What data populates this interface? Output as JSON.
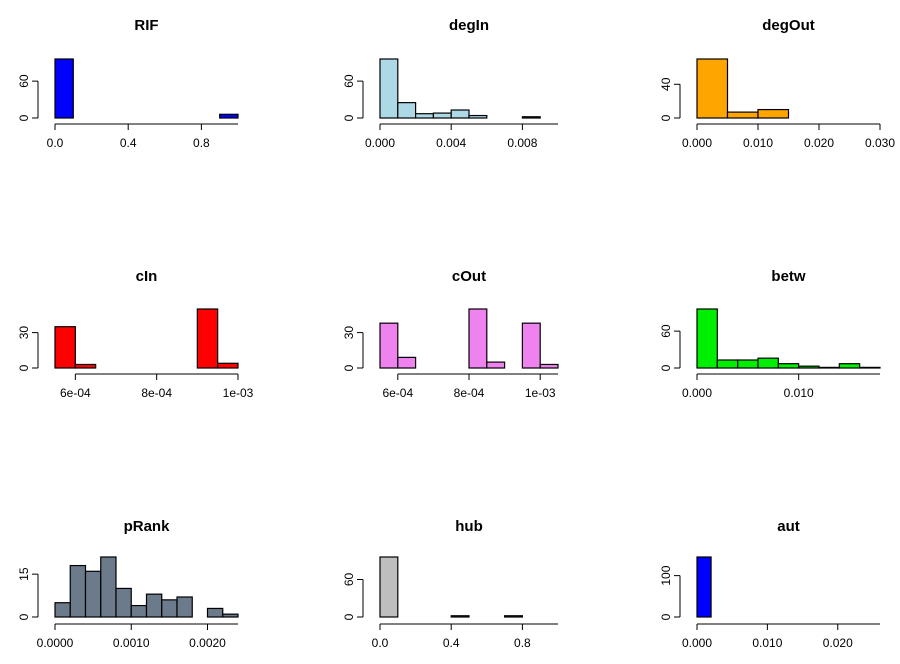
{
  "chart_data": [
    {
      "type": "bar",
      "title": "RIF",
      "color": "#0000ff",
      "bins": [
        {
          "start": 0.0,
          "end": 0.1,
          "count": 96
        },
        {
          "start": 0.1,
          "end": 0.2,
          "count": 0
        },
        {
          "start": 0.2,
          "end": 0.3,
          "count": 0
        },
        {
          "start": 0.3,
          "end": 0.4,
          "count": 0
        },
        {
          "start": 0.4,
          "end": 0.5,
          "count": 0
        },
        {
          "start": 0.5,
          "end": 0.6,
          "count": 0
        },
        {
          "start": 0.6,
          "end": 0.7,
          "count": 0
        },
        {
          "start": 0.7,
          "end": 0.8,
          "count": 0
        },
        {
          "start": 0.8,
          "end": 0.9,
          "count": 0
        },
        {
          "start": 0.9,
          "end": 1.0,
          "count": 6
        }
      ],
      "xlim": [
        0,
        1.0
      ],
      "ylim": [
        0,
        96
      ],
      "xticks": [
        0.0,
        0.4,
        0.8
      ],
      "xtick_labels": [
        "0.0",
        "0.4",
        "0.8"
      ],
      "yticks": [
        0,
        60
      ],
      "ytick_labels": [
        "0",
        "60"
      ]
    },
    {
      "type": "bar",
      "title": "degIn",
      "color": "#add8e6",
      "bins": [
        {
          "start": 0.0,
          "end": 0.001,
          "count": 96
        },
        {
          "start": 0.001,
          "end": 0.002,
          "count": 25
        },
        {
          "start": 0.002,
          "end": 0.003,
          "count": 7
        },
        {
          "start": 0.003,
          "end": 0.004,
          "count": 8
        },
        {
          "start": 0.004,
          "end": 0.005,
          "count": 13
        },
        {
          "start": 0.005,
          "end": 0.006,
          "count": 4
        },
        {
          "start": 0.006,
          "end": 0.007,
          "count": 0
        },
        {
          "start": 0.007,
          "end": 0.008,
          "count": 0
        },
        {
          "start": 0.008,
          "end": 0.009,
          "count": 2
        },
        {
          "start": 0.009,
          "end": 0.01,
          "count": 0
        }
      ],
      "xlim": [
        0,
        0.01
      ],
      "ylim": [
        0,
        96
      ],
      "xticks": [
        0.0,
        0.004,
        0.008
      ],
      "xtick_labels": [
        "0.000",
        "0.004",
        "0.008"
      ],
      "yticks": [
        0,
        60
      ],
      "ytick_labels": [
        "0",
        "60"
      ]
    },
    {
      "type": "bar",
      "title": "degOut",
      "color": "#ffa500",
      "bins": [
        {
          "start": 0.0,
          "end": 0.005,
          "count": 70
        },
        {
          "start": 0.005,
          "end": 0.01,
          "count": 7
        },
        {
          "start": 0.01,
          "end": 0.015,
          "count": 10
        },
        {
          "start": 0.015,
          "end": 0.02,
          "count": 0
        },
        {
          "start": 0.02,
          "end": 0.025,
          "count": 0
        },
        {
          "start": 0.025,
          "end": 0.03,
          "count": 0
        }
      ],
      "xlim": [
        0,
        0.03
      ],
      "ylim": [
        0,
        70
      ],
      "xticks": [
        0.0,
        0.01,
        0.02,
        0.03
      ],
      "xtick_labels": [
        "0.000",
        "0.010",
        "0.020",
        "0.030"
      ],
      "yticks": [
        0,
        40
      ],
      "ytick_labels": [
        "0",
        "40"
      ]
    },
    {
      "type": "bar",
      "title": "cIn",
      "color": "#ff0000",
      "bins": [
        {
          "start": 0.00055,
          "end": 0.0006,
          "count": 35
        },
        {
          "start": 0.0006,
          "end": 0.00065,
          "count": 3
        },
        {
          "start": 0.00065,
          "end": 0.0007,
          "count": 0
        },
        {
          "start": 0.0007,
          "end": 0.00075,
          "count": 0
        },
        {
          "start": 0.00075,
          "end": 0.0008,
          "count": 0
        },
        {
          "start": 0.0008,
          "end": 0.00085,
          "count": 0
        },
        {
          "start": 0.00085,
          "end": 0.0009,
          "count": 0
        },
        {
          "start": 0.0009,
          "end": 0.00095,
          "count": 50
        },
        {
          "start": 0.00095,
          "end": 0.001,
          "count": 4
        }
      ],
      "xlim": [
        0.00055,
        0.001
      ],
      "ylim": [
        0,
        50
      ],
      "xticks": [
        0.0006,
        0.0008,
        0.001
      ],
      "xtick_labels": [
        "6e-04",
        "8e-04",
        "1e-03"
      ],
      "yticks": [
        0,
        30
      ],
      "ytick_labels": [
        "0",
        "30"
      ]
    },
    {
      "type": "bar",
      "title": "cOut",
      "color": "#ee82ee",
      "bins": [
        {
          "start": 0.00055,
          "end": 0.0006,
          "count": 38
        },
        {
          "start": 0.0006,
          "end": 0.00065,
          "count": 9
        },
        {
          "start": 0.00065,
          "end": 0.0007,
          "count": 0
        },
        {
          "start": 0.0007,
          "end": 0.00075,
          "count": 0
        },
        {
          "start": 0.00075,
          "end": 0.0008,
          "count": 0
        },
        {
          "start": 0.0008,
          "end": 0.00085,
          "count": 50
        },
        {
          "start": 0.00085,
          "end": 0.0009,
          "count": 5
        },
        {
          "start": 0.0009,
          "end": 0.00095,
          "count": 0
        },
        {
          "start": 0.00095,
          "end": 0.001,
          "count": 38
        },
        {
          "start": 0.001,
          "end": 0.00105,
          "count": 3
        }
      ],
      "xlim": [
        0.00055,
        0.00105
      ],
      "ylim": [
        0,
        50
      ],
      "xticks": [
        0.0006,
        0.0008,
        0.001
      ],
      "xtick_labels": [
        "6e-04",
        "8e-04",
        "1e-03"
      ],
      "yticks": [
        0,
        30
      ],
      "ytick_labels": [
        "0",
        "30"
      ]
    },
    {
      "type": "bar",
      "title": "betw",
      "color": "#00ee00",
      "bins": [
        {
          "start": 0.0,
          "end": 0.002,
          "count": 96
        },
        {
          "start": 0.002,
          "end": 0.004,
          "count": 13
        },
        {
          "start": 0.004,
          "end": 0.006,
          "count": 13
        },
        {
          "start": 0.006,
          "end": 0.008,
          "count": 16
        },
        {
          "start": 0.008,
          "end": 0.01,
          "count": 7
        },
        {
          "start": 0.01,
          "end": 0.012,
          "count": 3
        },
        {
          "start": 0.012,
          "end": 0.014,
          "count": 1
        },
        {
          "start": 0.014,
          "end": 0.016,
          "count": 7
        },
        {
          "start": 0.016,
          "end": 0.018,
          "count": 1
        }
      ],
      "xlim": [
        0,
        0.018
      ],
      "ylim": [
        0,
        96
      ],
      "xticks": [
        0.0,
        0.01
      ],
      "xtick_labels": [
        "0.000",
        "0.010"
      ],
      "yticks": [
        0,
        60
      ],
      "ytick_labels": [
        "0",
        "60"
      ]
    },
    {
      "type": "bar",
      "title": "pRank",
      "color": "#6c7b8b",
      "bins": [
        {
          "start": 0.0,
          "end": 0.0002,
          "count": 5
        },
        {
          "start": 0.0002,
          "end": 0.0004,
          "count": 18
        },
        {
          "start": 0.0004,
          "end": 0.0006,
          "count": 16
        },
        {
          "start": 0.0006,
          "end": 0.0008,
          "count": 21
        },
        {
          "start": 0.0008,
          "end": 0.001,
          "count": 10
        },
        {
          "start": 0.001,
          "end": 0.0012,
          "count": 4
        },
        {
          "start": 0.0012,
          "end": 0.0014,
          "count": 8
        },
        {
          "start": 0.0014,
          "end": 0.0016,
          "count": 6
        },
        {
          "start": 0.0016,
          "end": 0.0018,
          "count": 7
        },
        {
          "start": 0.0018,
          "end": 0.002,
          "count": 0
        },
        {
          "start": 0.002,
          "end": 0.0022,
          "count": 3
        },
        {
          "start": 0.0022,
          "end": 0.0024,
          "count": 1
        }
      ],
      "xlim": [
        0,
        0.0024
      ],
      "ylim": [
        0,
        21
      ],
      "xticks": [
        0.0,
        0.001,
        0.002
      ],
      "xtick_labels": [
        "0.0000",
        "0.0010",
        "0.0020"
      ],
      "yticks": [
        0,
        15
      ],
      "ytick_labels": [
        "0",
        "15"
      ]
    },
    {
      "type": "bar",
      "title": "hub",
      "color": "#bebebe",
      "bins": [
        {
          "start": 0.0,
          "end": 0.1,
          "count": 96
        },
        {
          "start": 0.1,
          "end": 0.2,
          "count": 0
        },
        {
          "start": 0.2,
          "end": 0.3,
          "count": 0
        },
        {
          "start": 0.3,
          "end": 0.4,
          "count": 0
        },
        {
          "start": 0.4,
          "end": 0.5,
          "count": 2
        },
        {
          "start": 0.5,
          "end": 0.6,
          "count": 0
        },
        {
          "start": 0.6,
          "end": 0.7,
          "count": 0
        },
        {
          "start": 0.7,
          "end": 0.8,
          "count": 2
        },
        {
          "start": 0.8,
          "end": 0.9,
          "count": 0
        },
        {
          "start": 0.9,
          "end": 1.0,
          "count": 0
        }
      ],
      "xlim": [
        0,
        1.0
      ],
      "ylim": [
        0,
        96
      ],
      "xticks": [
        0.0,
        0.4,
        0.8
      ],
      "xtick_labels": [
        "0.0",
        "0.4",
        "0.8"
      ],
      "yticks": [
        0,
        60
      ],
      "ytick_labels": [
        "0",
        "60"
      ]
    },
    {
      "type": "bar",
      "title": "aut",
      "color": "#0000ff",
      "bins": [
        {
          "start": 0.0,
          "end": 0.002,
          "count": 145
        },
        {
          "start": 0.002,
          "end": 0.004,
          "count": 0
        },
        {
          "start": 0.004,
          "end": 0.006,
          "count": 0
        },
        {
          "start": 0.006,
          "end": 0.008,
          "count": 0
        },
        {
          "start": 0.008,
          "end": 0.01,
          "count": 0
        },
        {
          "start": 0.01,
          "end": 0.012,
          "count": 0
        },
        {
          "start": 0.012,
          "end": 0.014,
          "count": 0
        },
        {
          "start": 0.014,
          "end": 0.016,
          "count": 0
        },
        {
          "start": 0.016,
          "end": 0.018,
          "count": 0
        },
        {
          "start": 0.018,
          "end": 0.02,
          "count": 0
        },
        {
          "start": 0.02,
          "end": 0.022,
          "count": 0
        },
        {
          "start": 0.022,
          "end": 0.024,
          "count": 0
        },
        {
          "start": 0.024,
          "end": 0.026,
          "count": 0
        }
      ],
      "xlim": [
        0,
        0.026
      ],
      "ylim": [
        0,
        145
      ],
      "xticks": [
        0.0,
        0.01,
        0.02
      ],
      "xtick_labels": [
        "0.000",
        "0.010",
        "0.020"
      ],
      "yticks": [
        0,
        100
      ],
      "ytick_labels": [
        "0",
        "100"
      ]
    }
  ]
}
